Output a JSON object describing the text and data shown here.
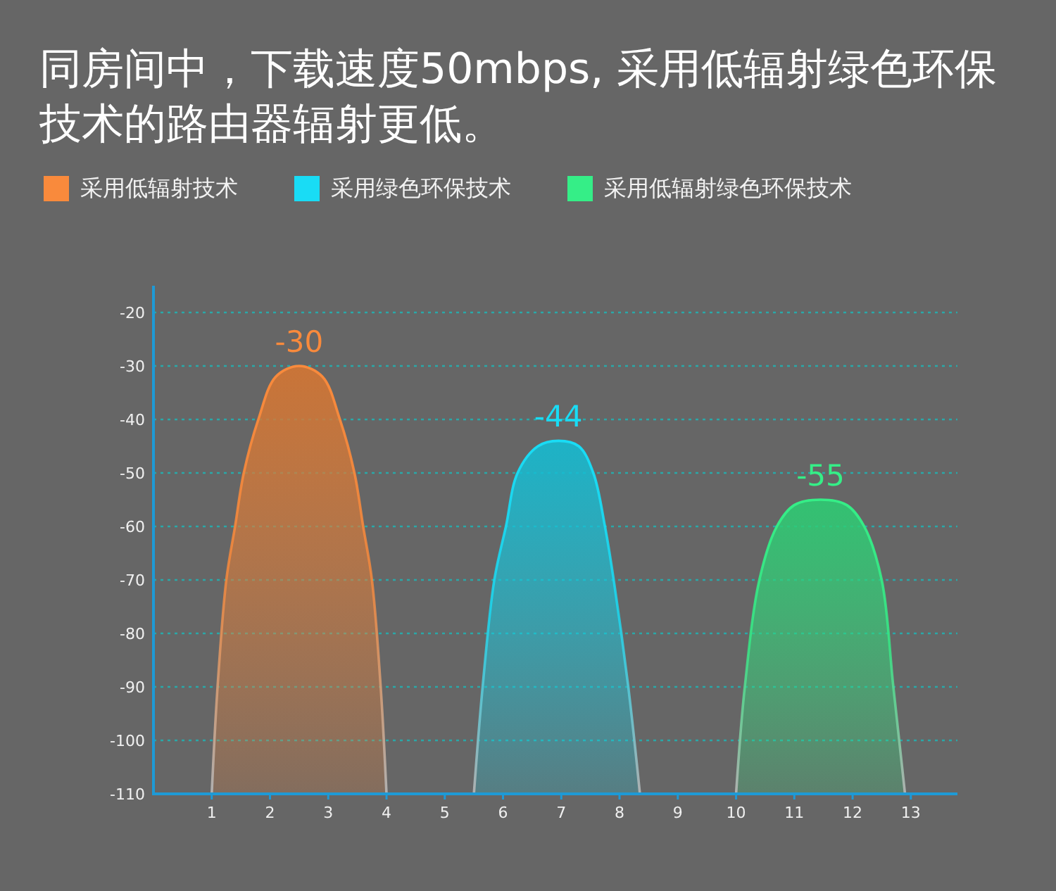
{
  "chart_data": {
    "type": "area",
    "title": "同房间中，下载速度50mbps, 采用低辐射绿色环保技术的路由器辐射更低。",
    "series": [
      {
        "name": "采用低辐射技术",
        "color": "#f98a3c",
        "x": [
          1.0,
          1.1,
          1.25,
          1.4,
          1.55,
          1.8,
          2.1,
          2.5,
          2.9,
          3.2,
          3.45,
          3.6,
          3.75,
          3.9,
          4.0
        ],
        "values": [
          -110,
          -90,
          -70,
          -60,
          -50,
          -40,
          -32,
          -30,
          -32,
          -40,
          -50,
          -60,
          -70,
          -90,
          -110
        ],
        "value_labels": [
          null,
          null,
          null,
          null,
          null,
          null,
          null,
          "-30",
          null,
          null,
          null,
          null,
          null,
          null,
          null
        ]
      },
      {
        "name": "采用绿色环保技术",
        "color": "#19dcf5",
        "x": [
          5.5,
          5.65,
          5.85,
          6.05,
          6.25,
          6.6,
          6.95,
          7.3,
          7.55,
          7.75,
          7.9,
          8.15,
          8.35
        ],
        "values": [
          -110,
          -90,
          -70,
          -60,
          -50,
          -45,
          -44,
          -45,
          -50,
          -60,
          -70,
          -90,
          -110
        ],
        "value_labels": [
          null,
          null,
          null,
          null,
          null,
          null,
          "-44",
          null,
          null,
          null,
          null,
          null,
          null
        ]
      },
      {
        "name": "采用低辐射绿色环保技术",
        "color": "#35ee87",
        "x": [
          10.0,
          10.15,
          10.4,
          10.7,
          11.0,
          11.45,
          11.9,
          12.2,
          12.5,
          12.7,
          12.9
        ],
        "values": [
          -110,
          -90,
          -70,
          -60,
          -56,
          -55,
          -56,
          -60,
          -70,
          -90,
          -110
        ],
        "value_labels": [
          null,
          null,
          null,
          null,
          null,
          "-55",
          null,
          null,
          null,
          null,
          null
        ]
      }
    ],
    "xlim": [
      0,
      13.8
    ],
    "xticks": [
      1,
      2,
      3,
      4,
      5,
      6,
      7,
      8,
      9,
      10,
      11,
      12,
      13
    ],
    "ylim": [
      -110,
      -15
    ],
    "yticks": [
      -110,
      -100,
      -90,
      -80,
      -70,
      -60,
      -50,
      -40,
      -30,
      -20
    ],
    "grid": "y",
    "legend": "top left"
  }
}
